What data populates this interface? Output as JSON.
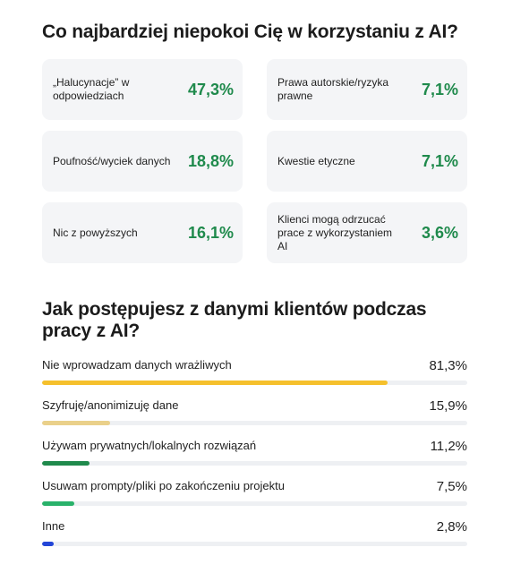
{
  "section1": {
    "title": "Co najbardziej niepokoi Cię w korzystaniu z AI?",
    "cards": [
      {
        "label": "„Halucynacje” w odpowiedziach",
        "value": "47,3%"
      },
      {
        "label": "Prawa autorskie/ryzyka prawne",
        "value": "7,1%"
      },
      {
        "label": "Poufność/wyciek danych",
        "value": "18,8%"
      },
      {
        "label": "Kwestie etyczne",
        "value": "7,1%"
      },
      {
        "label": "Nic z powyższych",
        "value": "16,1%"
      },
      {
        "label": "Klienci mogą odrzucać prace z wykorzystaniem AI",
        "value": "3,6%"
      }
    ]
  },
  "section2": {
    "title": "Jak postępujesz z danymi klientów podczas pracy z AI?"
  },
  "chart_data": {
    "type": "bar",
    "orientation": "horizontal",
    "title": "Jak postępujesz z danymi klientów podczas pracy z AI?",
    "categories": [
      "Nie wprowadzam danych wrażliwych",
      "Szyfruję/anonimizuję dane",
      "Używam prywatnych/lokalnych rozwiązań",
      "Usuwam prompty/pliki po zakończeniu projektu",
      "Inne"
    ],
    "values": [
      81.3,
      15.9,
      11.2,
      7.5,
      2.8
    ],
    "value_labels": [
      "81,3%",
      "15,9%",
      "11,2%",
      "7,5%",
      "2,8%"
    ],
    "colors": [
      "#f5c02c",
      "#ead08a",
      "#1f8a4c",
      "#29b26a",
      "#2346d8"
    ],
    "xlim": [
      0,
      100
    ],
    "grid": false
  }
}
